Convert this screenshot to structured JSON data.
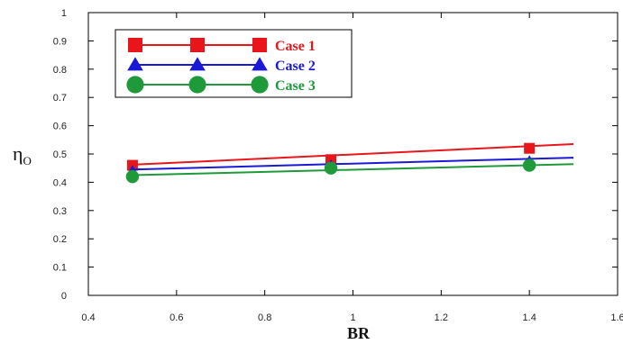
{
  "chart_data": {
    "type": "line",
    "xlabel": "BR",
    "ylabel": "η",
    "ylabel_subscript": "O",
    "xlim": [
      0.4,
      1.6
    ],
    "ylim": [
      0,
      1
    ],
    "xticks": [
      0.4,
      0.6,
      0.8,
      1,
      1.2,
      1.4,
      1.6
    ],
    "yticks": [
      0,
      0.1,
      0.2,
      0.3,
      0.4,
      0.5,
      0.6,
      0.7,
      0.8,
      0.9,
      1
    ],
    "xtick_labels": [
      "0.4",
      "0.6",
      "0.8",
      "1",
      "1.2",
      "1.4",
      "1.6"
    ],
    "ytick_labels": [
      "0",
      "0.1",
      "0.2",
      "0.3",
      "0.4",
      "0.5",
      "0.6",
      "0.7",
      "0.8",
      "0.9",
      "1"
    ],
    "grid": false,
    "legend_position": "top-left",
    "series": [
      {
        "name": "Case 1",
        "color": "#e8161b",
        "marker": "square",
        "points": [
          {
            "x": 0.5,
            "y": 0.46
          },
          {
            "x": 0.95,
            "y": 0.48
          },
          {
            "x": 1.4,
            "y": 0.52
          }
        ],
        "fit": [
          {
            "x": 0.5,
            "y": 0.462
          },
          {
            "x": 1.5,
            "y": 0.535
          }
        ]
      },
      {
        "name": "Case 2",
        "color": "#1a1ad6",
        "marker": "triangle",
        "points": [
          {
            "x": 0.5,
            "y": 0.44
          },
          {
            "x": 0.95,
            "y": 0.46
          },
          {
            "x": 1.4,
            "y": 0.475
          }
        ],
        "fit": [
          {
            "x": 0.5,
            "y": 0.445
          },
          {
            "x": 1.5,
            "y": 0.487
          }
        ]
      },
      {
        "name": "Case 3",
        "color": "#1e9a3a",
        "marker": "circle",
        "points": [
          {
            "x": 0.5,
            "y": 0.42
          },
          {
            "x": 0.95,
            "y": 0.45
          },
          {
            "x": 1.4,
            "y": 0.46
          }
        ],
        "fit": [
          {
            "x": 0.5,
            "y": 0.425
          },
          {
            "x": 1.5,
            "y": 0.464
          }
        ]
      }
    ]
  }
}
